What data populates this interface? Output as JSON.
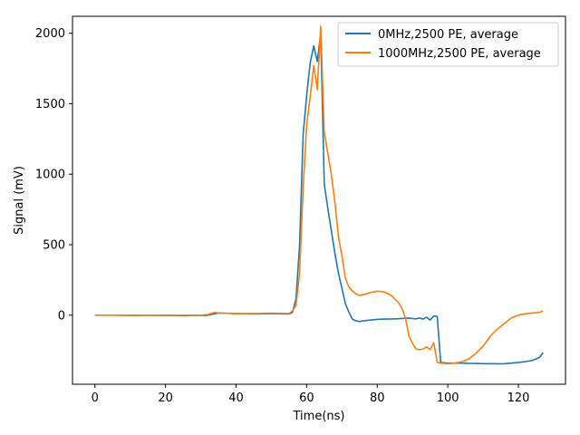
{
  "chart_data": {
    "type": "line",
    "xlabel": "Time(ns)",
    "ylabel": "Signal (mV)",
    "xlim": [
      -6.35,
      133.35
    ],
    "ylim": [
      -490,
      2120
    ],
    "xticks": [
      0,
      20,
      40,
      60,
      80,
      100,
      120
    ],
    "yticks": [
      0,
      500,
      1000,
      1500,
      2000
    ],
    "grid": false,
    "legend_position": "top-right",
    "series": [
      {
        "name": "0MHz,2500 PE, average",
        "color": "#1f77b4",
        "x": [
          0,
          5,
          10,
          15,
          20,
          25,
          30,
          32,
          34,
          35,
          40,
          45,
          50,
          55,
          56,
          57,
          58,
          59,
          60,
          61,
          62,
          63,
          64,
          65,
          66,
          67,
          68,
          69,
          70,
          71,
          72,
          73,
          74,
          75,
          76,
          78,
          80,
          82,
          84,
          86,
          88,
          89,
          90,
          91,
          92,
          93,
          94,
          95,
          96,
          97,
          98,
          100,
          102,
          104,
          106,
          108,
          110,
          112,
          114,
          116,
          118,
          120,
          122,
          124,
          126,
          127
        ],
        "y": [
          0,
          0,
          -2,
          -1,
          -2,
          -3,
          -2,
          -1,
          10,
          15,
          12,
          10,
          10,
          8,
          20,
          120,
          500,
          1280,
          1560,
          1790,
          1910,
          1800,
          2000,
          930,
          760,
          600,
          440,
          300,
          190,
          80,
          20,
          -30,
          -40,
          -45,
          -40,
          -35,
          -30,
          -28,
          -27,
          -25,
          -22,
          -20,
          -24,
          -26,
          -20,
          -28,
          -15,
          -35,
          -5,
          -10,
          -335,
          -340,
          -340,
          -340,
          -342,
          -343,
          -344,
          -344,
          -345,
          -344,
          -340,
          -335,
          -330,
          -320,
          -300,
          -265
        ]
      },
      {
        "name": "1000MHz,2500 PE, average",
        "color": "#ff7f0e",
        "x": [
          0,
          5,
          10,
          15,
          20,
          25,
          30,
          32,
          34,
          35,
          40,
          45,
          50,
          55,
          56,
          57,
          58,
          59,
          60,
          61,
          62,
          63,
          64,
          65,
          66,
          67,
          68,
          69,
          70,
          71,
          72,
          73,
          74,
          75,
          76,
          78,
          80,
          82,
          84,
          86,
          87,
          88,
          89,
          90,
          91,
          92,
          93,
          94,
          95,
          96,
          97,
          98,
          100,
          102,
          104,
          106,
          108,
          110,
          112,
          114,
          116,
          118,
          120,
          122,
          124,
          126,
          127
        ],
        "y": [
          0,
          0,
          0,
          0,
          0,
          0,
          0,
          5,
          20,
          15,
          10,
          12,
          14,
          12,
          30,
          70,
          300,
          900,
          1350,
          1550,
          1770,
          1600,
          2050,
          1300,
          1150,
          1000,
          800,
          560,
          420,
          260,
          200,
          170,
          150,
          140,
          145,
          160,
          170,
          165,
          140,
          90,
          50,
          -20,
          -150,
          -200,
          -240,
          -245,
          -240,
          -225,
          -245,
          -195,
          -335,
          -340,
          -345,
          -340,
          -330,
          -310,
          -270,
          -220,
          -150,
          -100,
          -60,
          -20,
          0,
          10,
          15,
          20,
          30
        ]
      }
    ]
  }
}
